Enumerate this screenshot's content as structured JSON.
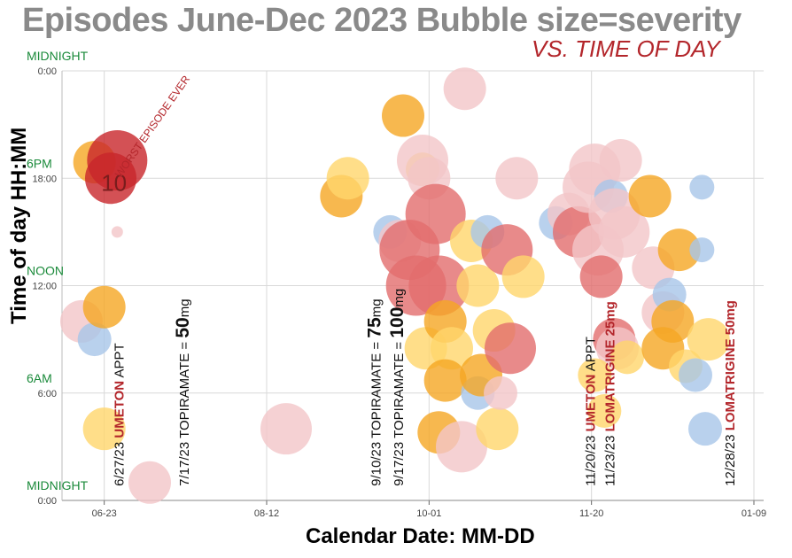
{
  "title": "Episodes June-Dec 2023 Bubble size=severity",
  "subtitle": "VS. TIME OF DAY",
  "ylabel": "Time of day  HH:MM",
  "xlabel": "Calendar Date:  MM-DD",
  "colors": {
    "orange": "#f5a623",
    "yellow": "#ffd66b",
    "red": "#c8252a",
    "salmon": "#e26d6d",
    "pink": "#f2c5c8",
    "blue": "#a8c6e8",
    "green_label": "#1a8a3a",
    "annotation_red": "#b3262b",
    "grid": "#d9d9d9"
  },
  "chart_data": {
    "type": "scatter",
    "xlabel": "Calendar Date:  MM-DD",
    "ylabel": "Time of day  HH:MM",
    "xlim": [
      "2023-06-10",
      "2024-01-12"
    ],
    "ylim": [
      0,
      24
    ],
    "grid": true,
    "x_ticks": [
      "06-23",
      "08-12",
      "10-01",
      "11-20",
      "01-09"
    ],
    "y_ticks": [
      "0:00",
      "6:00",
      "12:00",
      "18:00",
      "0:00"
    ],
    "y_tick_hours": [
      0,
      6,
      12,
      18,
      24
    ],
    "time_labels": [
      {
        "text": "MIDNIGHT",
        "hour": 24
      },
      {
        "text": "6PM",
        "hour": 18
      },
      {
        "text": "NOON",
        "hour": 12
      },
      {
        "text": "6AM",
        "hour": 6
      },
      {
        "text": "MIDNIGHT",
        "hour": 0
      }
    ],
    "points": [
      {
        "date": "2023-06-20",
        "hour": 18.9,
        "severity": 4,
        "color": "orange"
      },
      {
        "date": "2023-06-25",
        "hour": 18.0,
        "severity": 5,
        "color": "red"
      },
      {
        "date": "2023-06-27",
        "hour": 19.0,
        "severity": 6,
        "color": "red"
      },
      {
        "date": "2023-06-16",
        "hour": 10.0,
        "severity": 4,
        "color": "pink"
      },
      {
        "date": "2023-06-20",
        "hour": 9.0,
        "severity": 3,
        "color": "blue"
      },
      {
        "date": "2023-06-23",
        "hour": 10.8,
        "severity": 4,
        "color": "orange"
      },
      {
        "date": "2023-06-27",
        "hour": 15.0,
        "severity": 0.5,
        "color": "pink"
      },
      {
        "date": "2023-06-23",
        "hour": 4.0,
        "severity": 4,
        "color": "yellow"
      },
      {
        "date": "2023-07-07",
        "hour": 1.0,
        "severity": 4,
        "color": "pink"
      },
      {
        "date": "2023-08-18",
        "hour": 4.0,
        "severity": 5,
        "color": "pink"
      },
      {
        "date": "2023-09-04",
        "hour": 17.0,
        "severity": 4,
        "color": "orange"
      },
      {
        "date": "2023-09-06",
        "hour": 18.0,
        "severity": 4,
        "color": "yellow"
      },
      {
        "date": "2023-09-19",
        "hour": 15.0,
        "severity": 3,
        "color": "blue"
      },
      {
        "date": "2023-09-22",
        "hour": 14.5,
        "severity": 4,
        "color": "pink"
      },
      {
        "date": "2023-09-23",
        "hour": 21.5,
        "severity": 4,
        "color": "orange"
      },
      {
        "date": "2023-09-25",
        "hour": 14.0,
        "severity": 6,
        "color": "salmon"
      },
      {
        "date": "2023-09-27",
        "hour": 12.0,
        "severity": 6,
        "color": "salmon"
      },
      {
        "date": "2023-09-29",
        "hour": 18.5,
        "severity": 3,
        "color": "yellow"
      },
      {
        "date": "2023-09-29",
        "hour": 19.0,
        "severity": 5,
        "color": "pink"
      },
      {
        "date": "2023-10-01",
        "hour": 18.0,
        "severity": 4,
        "color": "pink"
      },
      {
        "date": "2023-10-03",
        "hour": 16.0,
        "severity": 6,
        "color": "salmon"
      },
      {
        "date": "2023-10-04",
        "hour": 12.0,
        "severity": 6,
        "color": "salmon"
      },
      {
        "date": "2023-09-30",
        "hour": 8.5,
        "severity": 4,
        "color": "yellow"
      },
      {
        "date": "2023-10-06",
        "hour": 10.0,
        "severity": 4,
        "color": "orange"
      },
      {
        "date": "2023-10-08",
        "hour": 8.5,
        "severity": 4,
        "color": "yellow"
      },
      {
        "date": "2023-10-06",
        "hour": 6.7,
        "severity": 4,
        "color": "orange"
      },
      {
        "date": "2023-10-04",
        "hour": 3.8,
        "severity": 4,
        "color": "orange"
      },
      {
        "date": "2023-10-11",
        "hour": 3.0,
        "severity": 5,
        "color": "pink"
      },
      {
        "date": "2023-10-12",
        "hour": 23.0,
        "severity": 4,
        "color": "pink"
      },
      {
        "date": "2023-10-14",
        "hour": 14.5,
        "severity": 4,
        "color": "yellow"
      },
      {
        "date": "2023-10-16",
        "hour": 12.0,
        "severity": 4,
        "color": "yellow"
      },
      {
        "date": "2023-10-16",
        "hour": 6.0,
        "severity": 3,
        "color": "blue"
      },
      {
        "date": "2023-10-17",
        "hour": 7.0,
        "severity": 4,
        "color": "orange"
      },
      {
        "date": "2023-10-19",
        "hour": 15.0,
        "severity": 3,
        "color": "blue"
      },
      {
        "date": "2023-10-22",
        "hour": 4.0,
        "severity": 4,
        "color": "yellow"
      },
      {
        "date": "2023-10-21",
        "hour": 9.5,
        "severity": 4,
        "color": "yellow"
      },
      {
        "date": "2023-10-23",
        "hour": 6.0,
        "severity": 3,
        "color": "pink"
      },
      {
        "date": "2023-10-25",
        "hour": 14.0,
        "severity": 5,
        "color": "salmon"
      },
      {
        "date": "2023-10-26",
        "hour": 8.5,
        "severity": 5,
        "color": "salmon"
      },
      {
        "date": "2023-10-28",
        "hour": 18.0,
        "severity": 4,
        "color": "pink"
      },
      {
        "date": "2023-10-30",
        "hour": 12.5,
        "severity": 4,
        "color": "yellow"
      },
      {
        "date": "2023-11-09",
        "hour": 15.5,
        "severity": 3,
        "color": "blue"
      },
      {
        "date": "2023-11-13",
        "hour": 16.0,
        "severity": 4,
        "color": "pink"
      },
      {
        "date": "2023-11-16",
        "hour": 15.0,
        "severity": 5,
        "color": "salmon"
      },
      {
        "date": "2023-11-19",
        "hour": 17.5,
        "severity": 5,
        "color": "pink"
      },
      {
        "date": "2023-11-21",
        "hour": 18.5,
        "severity": 5,
        "color": "pink"
      },
      {
        "date": "2023-11-22",
        "hour": 14.0,
        "severity": 5,
        "color": "pink"
      },
      {
        "date": "2023-11-23",
        "hour": 12.5,
        "severity": 4,
        "color": "salmon"
      },
      {
        "date": "2023-11-26",
        "hour": 17.0,
        "severity": 3,
        "color": "blue"
      },
      {
        "date": "2023-11-27",
        "hour": 16.0,
        "severity": 5,
        "color": "pink"
      },
      {
        "date": "2023-11-29",
        "hour": 19.0,
        "severity": 4,
        "color": "pink"
      },
      {
        "date": "2023-11-30",
        "hour": 15.0,
        "severity": 5,
        "color": "pink"
      },
      {
        "date": "2023-11-27",
        "hour": 9.0,
        "severity": 4,
        "color": "salmon"
      },
      {
        "date": "2023-11-28",
        "hour": 8.5,
        "severity": 4,
        "color": "pink"
      },
      {
        "date": "2023-11-21",
        "hour": 7.0,
        "severity": 3,
        "color": "yellow"
      },
      {
        "date": "2023-11-24",
        "hour": 5.0,
        "severity": 3,
        "color": "yellow"
      },
      {
        "date": "2023-12-01",
        "hour": 8.0,
        "severity": 3,
        "color": "yellow"
      },
      {
        "date": "2023-12-08",
        "hour": 17.0,
        "severity": 4,
        "color": "orange"
      },
      {
        "date": "2023-12-09",
        "hour": 13.0,
        "severity": 4,
        "color": "pink"
      },
      {
        "date": "2023-12-12",
        "hour": 10.5,
        "severity": 4,
        "color": "pink"
      },
      {
        "date": "2023-12-14",
        "hour": 11.5,
        "severity": 3,
        "color": "blue"
      },
      {
        "date": "2023-12-15",
        "hour": 10.0,
        "severity": 4,
        "color": "orange"
      },
      {
        "date": "2023-12-12",
        "hour": 8.5,
        "severity": 4,
        "color": "orange"
      },
      {
        "date": "2023-12-17",
        "hour": 14.0,
        "severity": 4,
        "color": "orange"
      },
      {
        "date": "2023-12-19",
        "hour": 7.5,
        "severity": 3,
        "color": "yellow"
      },
      {
        "date": "2023-12-22",
        "hour": 7.0,
        "severity": 3,
        "color": "blue"
      },
      {
        "date": "2023-12-24",
        "hour": 17.5,
        "severity": 2,
        "color": "blue"
      },
      {
        "date": "2023-12-24",
        "hour": 14.0,
        "severity": 2,
        "color": "blue"
      },
      {
        "date": "2023-12-26",
        "hour": 9.0,
        "severity": 4,
        "color": "yellow"
      },
      {
        "date": "2023-12-25",
        "hour": 4.0,
        "severity": 3,
        "color": "blue"
      }
    ],
    "point_labels": [
      {
        "text": "10",
        "date": "2023-06-26",
        "hour": 17.3
      }
    ],
    "annotations": [
      {
        "date": "2023-06-28",
        "hour": 18.0,
        "angle": -55,
        "anchor": "start",
        "runs": [
          {
            "text": "WORST EPISODE EVER",
            "color": "annotation_red",
            "size": 12
          }
        ]
      },
      {
        "date": "2023-06-29",
        "hour": 0.8,
        "angle": -90,
        "anchor": "start",
        "runs": [
          {
            "text": "6/27/23 ",
            "color": "black",
            "size": 15
          },
          {
            "text": "UMETON",
            "color": "annotation_red",
            "size": 15,
            "bold": true
          },
          {
            "text": " APPT",
            "color": "black",
            "size": 15
          }
        ]
      },
      {
        "date": "2023-07-19",
        "hour": 0.8,
        "angle": -90,
        "anchor": "start",
        "runs": [
          {
            "text": "7/17/23 TOPIRAMATE = ",
            "color": "black",
            "size": 15
          },
          {
            "text": "50",
            "color": "black",
            "size": 21,
            "bold": true
          },
          {
            "text": "mg",
            "color": "black",
            "size": 15
          }
        ]
      },
      {
        "date": "2023-09-16",
        "hour": 0.8,
        "angle": -90,
        "anchor": "start",
        "runs": [
          {
            "text": "9/10/23 TOPIRAMATE = ",
            "color": "black",
            "size": 15
          },
          {
            "text": "75",
            "color": "black",
            "size": 21,
            "bold": true
          },
          {
            "text": "mg",
            "color": "black",
            "size": 15
          }
        ]
      },
      {
        "date": "2023-09-23",
        "hour": 0.8,
        "angle": -90,
        "anchor": "start",
        "runs": [
          {
            "text": "9/17/23 TOPIRAMATE = ",
            "color": "black",
            "size": 15
          },
          {
            "text": "100",
            "color": "black",
            "size": 21,
            "bold": true
          },
          {
            "text": "mg",
            "color": "black",
            "size": 15
          }
        ]
      },
      {
        "date": "2023-11-21",
        "hour": 0.8,
        "angle": -90,
        "anchor": "start",
        "runs": [
          {
            "text": "11/20/23 ",
            "color": "black",
            "size": 15
          },
          {
            "text": "UMETON",
            "color": "annotation_red",
            "size": 15,
            "bold": true
          },
          {
            "text": " APPT",
            "color": "black",
            "size": 15
          }
        ]
      },
      {
        "date": "2023-11-27",
        "hour": 0.8,
        "angle": -90,
        "anchor": "start",
        "runs": [
          {
            "text": "11/23/23 ",
            "color": "black",
            "size": 15
          },
          {
            "text": "LOMATRIGINE 25mg",
            "color": "annotation_red",
            "size": 15,
            "bold": true
          }
        ]
      },
      {
        "date": "2024-01-03",
        "hour": 0.8,
        "angle": -90,
        "anchor": "start",
        "runs": [
          {
            "text": "12/28/23 ",
            "color": "black",
            "size": 15
          },
          {
            "text": "LOMATRIGINE 50mg",
            "color": "annotation_red",
            "size": 15,
            "bold": true
          }
        ]
      }
    ]
  }
}
